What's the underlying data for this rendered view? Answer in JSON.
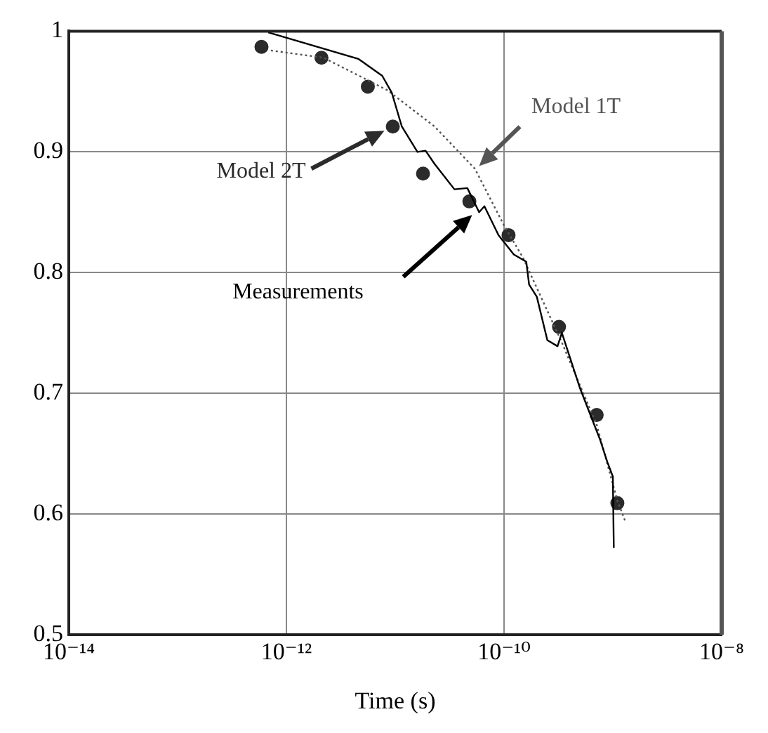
{
  "chart_data": {
    "type": "line",
    "xlabel": "Time (s)",
    "log": "x",
    "grid": true,
    "legend": false,
    "xlim": [
      1e-14,
      1e-08
    ],
    "xticks": [
      {
        "value": 1e-14,
        "label": "10⁻¹⁴"
      },
      {
        "value": 1e-12,
        "label": "10⁻¹²"
      },
      {
        "value": 1e-10,
        "label": "10⁻¹⁰"
      },
      {
        "value": 1e-08,
        "label": "10⁻⁸"
      }
    ],
    "ylim": [
      0.5,
      1
    ],
    "yticks": [
      0.5,
      0.6,
      0.7,
      0.8,
      0.9,
      1
    ],
    "series": [
      {
        "name": "Measurements",
        "type": "line",
        "line_style": "solid",
        "marker": "none",
        "color": "#000000",
        "x": [
          6.8e-13,
          4.6e-12,
          7.6e-12,
          9.3e-12,
          1.15e-11,
          1.6e-11,
          1.9e-11,
          2.3e-11,
          3.5e-11,
          4.6e-11,
          5.9e-11,
          6.6e-11,
          8.9e-11,
          1.23e-10,
          1.6e-10,
          1.7e-10,
          2e-10,
          2.5e-10,
          3.1e-10,
          3.4e-10,
          5e-10,
          7.6e-10,
          8.9e-10,
          1e-09,
          1.02e-09
        ],
        "values": [
          0.999,
          0.977,
          0.963,
          0.949,
          0.921,
          0.9,
          0.901,
          0.89,
          0.869,
          0.87,
          0.85,
          0.855,
          0.831,
          0.815,
          0.809,
          0.79,
          0.78,
          0.744,
          0.739,
          0.75,
          0.704,
          0.662,
          0.643,
          0.631,
          0.572
        ]
      },
      {
        "name": "Model 1T",
        "type": "line",
        "line_style": "dotted",
        "marker": "none",
        "color": "#555555",
        "x": [
          7.2e-13,
          2.2e-12,
          8.5e-12,
          2.3e-11,
          5.4e-11,
          1e-10,
          1.5e-10,
          3.4e-10,
          7.1e-10,
          1.1e-09,
          1.3e-09
        ],
        "values": [
          0.984,
          0.978,
          0.951,
          0.921,
          0.886,
          0.839,
          0.812,
          0.742,
          0.674,
          0.611,
          0.594
        ]
      },
      {
        "name": "Model 2T",
        "type": "scatter",
        "marker": "circle",
        "color": "#2b2b2b",
        "x": [
          5.9e-13,
          2.1e-12,
          5.6e-12,
          9.5e-12,
          1.8e-11,
          4.8e-11,
          1.1e-10,
          3.2e-10,
          7.1e-10,
          1.1e-09
        ],
        "values": [
          0.987,
          0.978,
          0.954,
          0.921,
          0.882,
          0.859,
          0.831,
          0.755,
          0.682,
          0.609
        ]
      }
    ]
  }
}
